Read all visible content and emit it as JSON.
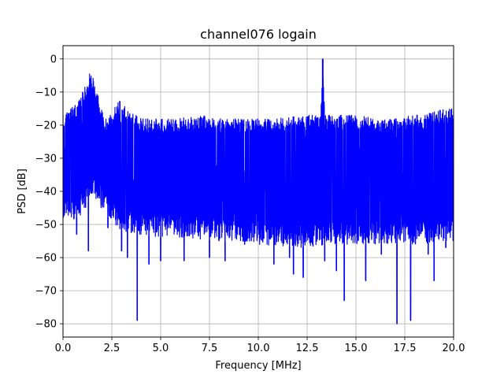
{
  "chart_data": {
    "type": "line",
    "title": "channel076 logain",
    "xlabel": "Frequency [MHz]",
    "ylabel": "PSD [dB]",
    "xlim": [
      0,
      20
    ],
    "ylim": [
      -84,
      4
    ],
    "xticks": [
      0,
      2.5,
      5,
      7.5,
      10,
      12.5,
      15,
      17.5,
      20
    ],
    "xtick_labels": [
      "0.0",
      "2.5",
      "5.0",
      "7.5",
      "10.0",
      "12.5",
      "15.0",
      "17.5",
      "20.0"
    ],
    "yticks": [
      0,
      -10,
      -20,
      -30,
      -40,
      -50,
      -60,
      -70,
      -80
    ],
    "ytick_labels": [
      "0",
      "−10",
      "−20",
      "−30",
      "−40",
      "−50",
      "−60",
      "−70",
      "−80"
    ],
    "grid": true,
    "color": "#0000ff",
    "upper_envelope": {
      "x": [
        0,
        0.2,
        0.4,
        0.6,
        0.8,
        1.0,
        1.2,
        1.3,
        1.4,
        1.5,
        1.6,
        1.8,
        2.0,
        2.2,
        2.4,
        2.6,
        2.8,
        3.0,
        3.2,
        3.5,
        4.0,
        5.0,
        6.0,
        7.0,
        8.0,
        9.0,
        10.0,
        11.0,
        12.0,
        13.0,
        13.2,
        13.3,
        13.4,
        14.0,
        15.0,
        16.0,
        17.0,
        18.0,
        18.5,
        19.0,
        19.5,
        20.0
      ],
      "y": [
        -17,
        -16,
        -15,
        -14,
        -12,
        -10,
        -7,
        -5,
        -3.5,
        -5,
        -7,
        -11,
        -16,
        -18,
        -17,
        -15,
        -13,
        -12,
        -14,
        -16,
        -18,
        -18,
        -18,
        -17,
        -18,
        -18,
        -18,
        -18,
        -17,
        -17,
        -17,
        0,
        -17,
        -17,
        -17,
        -18,
        -18,
        -17,
        -17,
        -16,
        -15,
        -15
      ]
    },
    "lower_envelope": {
      "x": [
        0,
        1.0,
        1.5,
        2.0,
        3.0,
        4.0,
        5.0,
        6.0,
        8.0,
        10.0,
        12.0,
        14.0,
        16.0,
        18.0,
        20.0
      ],
      "y": [
        -50,
        -47,
        -41,
        -46,
        -52,
        -53,
        -54,
        -54,
        -55,
        -56,
        -57,
        -56,
        -56,
        -56,
        -55
      ]
    },
    "dips": [
      {
        "x": 0.7,
        "y": -53
      },
      {
        "x": 1.3,
        "y": -58
      },
      {
        "x": 2.3,
        "y": -51
      },
      {
        "x": 3.0,
        "y": -58
      },
      {
        "x": 3.3,
        "y": -60
      },
      {
        "x": 3.8,
        "y": -79
      },
      {
        "x": 4.4,
        "y": -62
      },
      {
        "x": 5.0,
        "y": -61
      },
      {
        "x": 6.2,
        "y": -61
      },
      {
        "x": 7.5,
        "y": -60
      },
      {
        "x": 8.3,
        "y": -61
      },
      {
        "x": 9.3,
        "y": -56
      },
      {
        "x": 10.8,
        "y": -62
      },
      {
        "x": 11.6,
        "y": -60
      },
      {
        "x": 11.8,
        "y": -65
      },
      {
        "x": 12.3,
        "y": -66
      },
      {
        "x": 12.8,
        "y": -56
      },
      {
        "x": 13.4,
        "y": -61
      },
      {
        "x": 14.0,
        "y": -64
      },
      {
        "x": 14.4,
        "y": -73
      },
      {
        "x": 15.5,
        "y": -67
      },
      {
        "x": 16.3,
        "y": -59
      },
      {
        "x": 17.1,
        "y": -80
      },
      {
        "x": 17.8,
        "y": -79
      },
      {
        "x": 18.7,
        "y": -59
      },
      {
        "x": 19.0,
        "y": -67
      },
      {
        "x": 19.6,
        "y": -57
      }
    ],
    "spikes": [
      {
        "x": 13.3,
        "y": 0
      }
    ]
  }
}
